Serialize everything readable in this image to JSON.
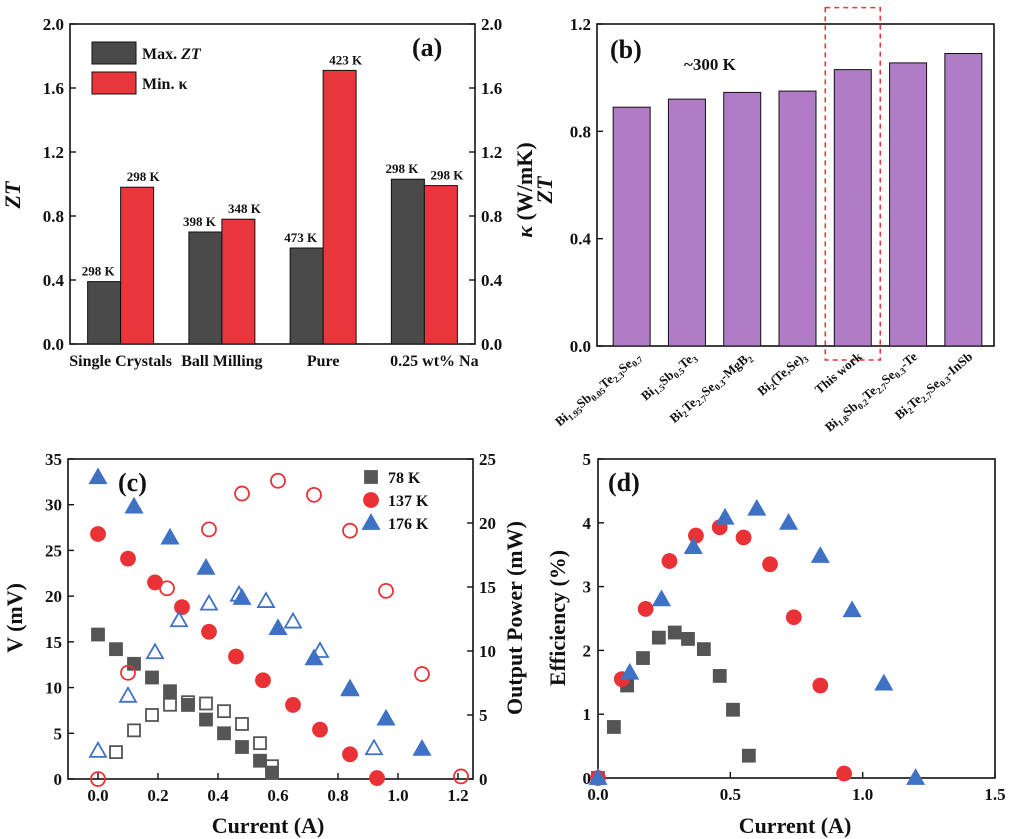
{
  "colors": {
    "max_zt": "#4a4a4a",
    "min_kappa": "#e8363c",
    "purple": "#b07cc6",
    "k78": "#555555",
    "k137": "#e83236",
    "k176": "#3f72c4",
    "dashed": "#e8363c"
  },
  "chart_data": [
    {
      "panel": "(a)",
      "type": "bar",
      "categories": [
        "Single Crystals",
        "Ball Milling",
        "Pure",
        "0.25 wt%  Na"
      ],
      "series": [
        {
          "name": "Max. ZT",
          "values": [
            0.39,
            0.7,
            0.6,
            1.03
          ],
          "labels": [
            "298 K",
            "398 K",
            "473 K",
            "298 K"
          ],
          "color": "#4a4a4a"
        },
        {
          "name": "Min. κ",
          "values": [
            0.98,
            0.78,
            1.71,
            0.99
          ],
          "labels": [
            "298 K",
            "348 K",
            "423 K",
            "298 K"
          ],
          "color": "#e8363c"
        }
      ],
      "legend_items": [
        "Max. ",
        "ZT",
        "Min. κ"
      ],
      "ylabel": "ZT",
      "ylabel_right": "κ (W/mK)",
      "ylim": [
        0,
        2.0
      ],
      "yticks": [
        "0.0",
        "0.4",
        "0.8",
        "1.2",
        "1.6",
        "2.0"
      ]
    },
    {
      "panel": "(b)",
      "type": "bar",
      "annotation": "~300 K",
      "ylabel": "ZT",
      "ylim": [
        0,
        1.2
      ],
      "yticks": [
        "0.0",
        "0.4",
        "0.8",
        "1.2"
      ],
      "categories": [
        {
          "parts": [
            [
              "Bi",
              0
            ],
            [
              "1.95",
              1
            ],
            [
              "Sb",
              0
            ],
            [
              "0.05",
              1
            ],
            [
              "Te",
              0
            ],
            [
              "2.3",
              1
            ],
            [
              "Se",
              0
            ],
            [
              "0.7",
              1
            ]
          ]
        },
        {
          "parts": [
            [
              "Bi",
              0
            ],
            [
              "1.5",
              1
            ],
            [
              "Sb",
              0
            ],
            [
              "0.5",
              1
            ],
            [
              "Te",
              0
            ],
            [
              "3",
              1
            ]
          ]
        },
        {
          "parts": [
            [
              "Bi",
              0
            ],
            [
              "2",
              1
            ],
            [
              "Te",
              0
            ],
            [
              "2.7",
              1
            ],
            [
              "Se",
              0
            ],
            [
              "0.3",
              1
            ],
            [
              "-MgB",
              0
            ],
            [
              "2",
              1
            ]
          ]
        },
        {
          "parts": [
            [
              "Bi",
              0
            ],
            [
              "2",
              1
            ],
            [
              "(Te,Se)",
              0
            ],
            [
              "3",
              1
            ]
          ]
        },
        {
          "parts": [
            [
              "This work",
              0
            ]
          ]
        },
        {
          "parts": [
            [
              "Bi",
              0
            ],
            [
              "1.8",
              1
            ],
            [
              "Sb",
              0
            ],
            [
              "0.2",
              1
            ],
            [
              "Te",
              0
            ],
            [
              "2.7",
              1
            ],
            [
              "Se",
              0
            ],
            [
              "0.3",
              1
            ],
            [
              "-Te",
              0
            ]
          ]
        },
        {
          "parts": [
            [
              "Bi",
              0
            ],
            [
              "2",
              1
            ],
            [
              "Te",
              0
            ],
            [
              "2.7",
              1
            ],
            [
              "Se",
              0
            ],
            [
              "0.3",
              1
            ],
            [
              "-InSb",
              0
            ]
          ]
        }
      ],
      "values": [
        0.89,
        0.92,
        0.945,
        0.95,
        1.03,
        1.055,
        1.09
      ],
      "highlight_index": 4
    },
    {
      "panel": "(c)",
      "type": "scatter",
      "xlabel": "Current (A)",
      "ylabel": "V (mV)",
      "ylabel_right": "Output Power (mW)",
      "xlim": [
        -0.1,
        1.25
      ],
      "ylim": [
        0,
        35
      ],
      "ylim_right": [
        0,
        25
      ],
      "xticks": [
        "0.0",
        "0.2",
        "0.4",
        "0.6",
        "0.8",
        "1.0",
        "1.2"
      ],
      "yticks": [
        "0",
        "5",
        "10",
        "15",
        "20",
        "25",
        "30",
        "35"
      ],
      "yticks_right": [
        "0",
        "5",
        "10",
        "15",
        "20",
        "25"
      ],
      "series": [
        {
          "name": "78 K",
          "marker": "square",
          "color": "#555555",
          "voltage": {
            "x": [
              0.0,
              0.06,
              0.12,
              0.18,
              0.24,
              0.3,
              0.36,
              0.42,
              0.48,
              0.54,
              0.58
            ],
            "y": [
              15.8,
              14.2,
              12.6,
              11.1,
              9.6,
              8.1,
              6.5,
              5.0,
              3.5,
              2.0,
              0.7
            ]
          },
          "power": {
            "x": [
              0.06,
              0.12,
              0.18,
              0.24,
              0.3,
              0.36,
              0.42,
              0.48,
              0.54,
              0.58
            ],
            "y": [
              2.1,
              3.8,
              5.0,
              5.8,
              6.0,
              5.9,
              5.3,
              4.3,
              2.8,
              1.0
            ]
          }
        },
        {
          "name": "137 K",
          "marker": "circle",
          "color": "#e83236",
          "voltage": {
            "x": [
              0.0,
              0.1,
              0.19,
              0.28,
              0.37,
              0.46,
              0.55,
              0.65,
              0.74,
              0.84,
              0.93
            ],
            "y": [
              26.8,
              24.1,
              21.5,
              18.8,
              16.1,
              13.4,
              10.8,
              8.1,
              5.4,
              2.7,
              0.1
            ]
          },
          "power": {
            "x": [
              0.0,
              0.1,
              0.23,
              0.37,
              0.48,
              0.6,
              0.72,
              0.84,
              0.96,
              1.08,
              1.21
            ],
            "y": [
              0.0,
              8.3,
              14.9,
              19.5,
              22.3,
              23.3,
              22.2,
              19.4,
              14.7,
              8.2,
              0.2
            ]
          }
        },
        {
          "name": "176 K",
          "marker": "triangle",
          "color": "#3f72c4",
          "voltage": {
            "x": [
              0.0,
              0.12,
              0.24,
              0.36,
              0.48,
              0.6,
              0.72,
              0.84,
              0.96,
              1.08
            ],
            "y": [
              33.0,
              29.8,
              26.4,
              23.1,
              19.8,
              16.5,
              13.2,
              9.9,
              6.6,
              3.3
            ]
          },
          "power": {
            "x": [
              0.0,
              0.1,
              0.19,
              0.27,
              0.37,
              0.47,
              0.56,
              0.65,
              0.74,
              0.84,
              0.92
            ],
            "y": [
              2.2,
              6.5,
              9.9,
              12.4,
              13.7,
              14.4,
              13.9,
              12.3,
              10.0,
              7.0,
              2.4
            ]
          }
        }
      ],
      "legend": [
        "78 K",
        "137 K",
        "176 K"
      ]
    },
    {
      "panel": "(d)",
      "type": "scatter",
      "xlabel": "Current (A)",
      "ylabel": "Efficiency (%)",
      "xlim": [
        0,
        1.5
      ],
      "ylim": [
        0,
        5
      ],
      "xticks": [
        "0.0",
        "0.5",
        "1.0",
        "1.5"
      ],
      "yticks": [
        "0",
        "1",
        "2",
        "3",
        "4",
        "5"
      ],
      "series": [
        {
          "name": "78 K",
          "marker": "square",
          "color": "#555555",
          "x": [
            0.0,
            0.06,
            0.11,
            0.17,
            0.23,
            0.29,
            0.34,
            0.4,
            0.46,
            0.51,
            0.57
          ],
          "y": [
            0.0,
            0.8,
            1.45,
            1.88,
            2.2,
            2.28,
            2.18,
            2.02,
            1.6,
            1.07,
            0.35
          ]
        },
        {
          "name": "137 K",
          "marker": "circle",
          "color": "#e83236",
          "x": [
            0.0,
            0.09,
            0.18,
            0.27,
            0.37,
            0.46,
            0.55,
            0.65,
            0.74,
            0.84,
            0.93
          ],
          "y": [
            0.0,
            1.55,
            2.65,
            3.4,
            3.8,
            3.93,
            3.77,
            3.35,
            2.52,
            1.45,
            0.07
          ]
        },
        {
          "name": "176 K",
          "marker": "triangle",
          "color": "#3f72c4",
          "x": [
            0.0,
            0.12,
            0.24,
            0.36,
            0.48,
            0.6,
            0.72,
            0.84,
            0.96,
            1.08,
            1.2
          ],
          "y": [
            0.0,
            1.65,
            2.8,
            3.62,
            4.08,
            4.22,
            4.0,
            3.48,
            2.63,
            1.48,
            0.0
          ]
        }
      ]
    }
  ]
}
